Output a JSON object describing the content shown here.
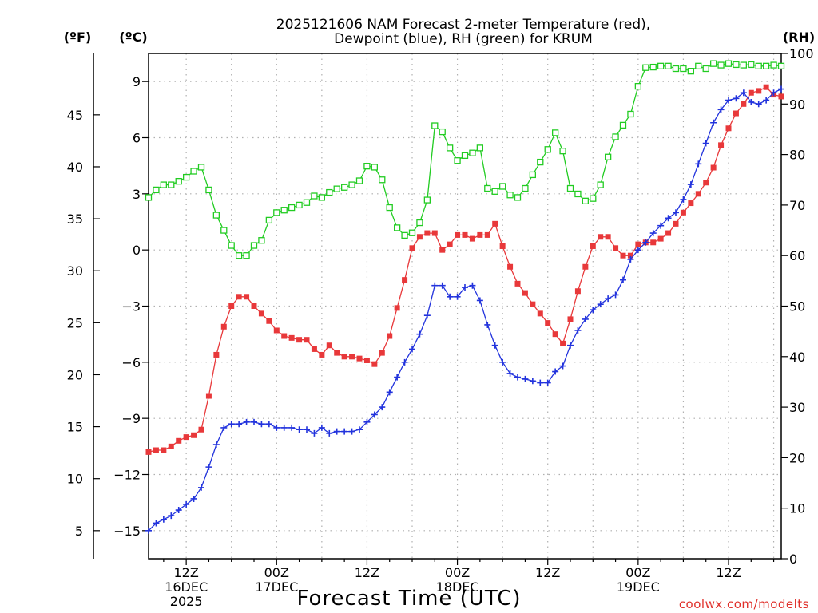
{
  "chart_data": {
    "type": "line",
    "title_line1": "2025121606 NAM Forecast 2-meter Temperature (red),",
    "title_line2": "Dewpoint (blue), RH (green) for KRUM",
    "xlabel": "Forecast Time (UTC)",
    "credit": "coolwx.com/modelts",
    "units": {
      "fahrenheit": "(ºF)",
      "celsius": "(ºC)",
      "rh": "(RH)"
    },
    "x_range_hours": [
      7,
      91
    ],
    "x_ticks": [
      {
        "hour": 12,
        "lines": [
          "12Z",
          "16DEC",
          "2025"
        ]
      },
      {
        "hour": 24,
        "lines": [
          "00Z",
          "17DEC"
        ]
      },
      {
        "hour": 36,
        "lines": [
          "12Z"
        ]
      },
      {
        "hour": 48,
        "lines": [
          "00Z",
          "18DEC"
        ]
      },
      {
        "hour": 60,
        "lines": [
          "12Z"
        ]
      },
      {
        "hour": 72,
        "lines": [
          "00Z",
          "19DEC"
        ]
      },
      {
        "hour": 84,
        "lines": [
          "12Z"
        ]
      }
    ],
    "celsius_axis": {
      "range": [
        -16.5,
        10.5
      ],
      "ticks": [
        -15,
        -12,
        -9,
        -6,
        -3,
        0,
        3,
        6,
        9
      ],
      "labels": [
        "−15",
        "−12",
        "−9",
        "−6",
        "−3",
        "0",
        "3",
        "6",
        "9"
      ]
    },
    "fahrenheit_axis": {
      "ticks": [
        5,
        10,
        15,
        20,
        25,
        30,
        35,
        40,
        45
      ],
      "labels": [
        "5",
        "10",
        "15",
        "20",
        "25",
        "30",
        "35",
        "40",
        "45"
      ]
    },
    "rh_axis": {
      "range": [
        0,
        100
      ],
      "ticks": [
        0,
        10,
        20,
        30,
        40,
        50,
        60,
        70,
        80,
        90,
        100
      ],
      "labels": [
        "0",
        "10",
        "20",
        "30",
        "40",
        "50",
        "60",
        "70",
        "80",
        "90",
        "100"
      ]
    },
    "grid": true,
    "colors": {
      "temperature": "#e8383a",
      "dewpoint": "#2233dd",
      "rh": "#22cc22",
      "grid": "#b0b0b0"
    },
    "series": [
      {
        "key": "temperature",
        "axis": "celsius",
        "marker": "filled-square",
        "x": [
          7,
          8,
          9,
          10,
          11,
          12,
          13,
          14,
          15,
          16,
          17,
          18,
          19,
          20,
          21,
          22,
          23,
          24,
          25,
          26,
          27,
          28,
          29,
          30,
          31,
          32,
          33,
          34,
          35,
          36,
          37,
          38,
          39,
          40,
          41,
          42,
          43,
          44,
          45,
          46,
          47,
          48,
          49,
          50,
          51,
          52,
          53,
          54,
          55,
          56,
          57,
          58,
          59,
          60,
          61,
          62,
          63,
          64,
          65,
          66,
          67,
          68,
          69,
          70,
          71,
          72,
          73,
          74,
          75,
          76,
          77,
          78,
          79,
          80,
          81,
          82,
          83,
          84,
          85,
          86,
          87,
          88,
          89,
          90,
          91
        ],
        "values": [
          -10.8,
          -10.7,
          -10.7,
          -10.5,
          -10.2,
          -10.0,
          -9.9,
          -9.6,
          -7.8,
          -5.6,
          -4.1,
          -3.0,
          -2.5,
          -2.5,
          -3.0,
          -3.4,
          -3.8,
          -4.3,
          -4.6,
          -4.7,
          -4.8,
          -4.8,
          -5.3,
          -5.6,
          -5.1,
          -5.5,
          -5.7,
          -5.7,
          -5.8,
          -5.9,
          -6.1,
          -5.5,
          -4.6,
          -3.1,
          -1.6,
          0.1,
          0.7,
          0.9,
          0.9,
          0.0,
          0.3,
          0.8,
          0.8,
          0.6,
          0.8,
          0.8,
          1.4,
          0.2,
          -0.9,
          -1.8,
          -2.3,
          -2.9,
          -3.4,
          -3.9,
          -4.5,
          -5.0,
          -3.7,
          -2.2,
          -0.9,
          0.2,
          0.7,
          0.7,
          0.1,
          -0.3,
          -0.3,
          0.3,
          0.4,
          0.4,
          0.6,
          0.9,
          1.4,
          2.0,
          2.5,
          3.0,
          3.6,
          4.4,
          5.6,
          6.5,
          7.3,
          7.8,
          8.4,
          8.5,
          8.7,
          8.3,
          8.2
        ]
      },
      {
        "key": "dewpoint",
        "axis": "celsius",
        "marker": "plus",
        "x": [
          7,
          8,
          9,
          10,
          11,
          12,
          13,
          14,
          15,
          16,
          17,
          18,
          19,
          20,
          21,
          22,
          23,
          24,
          25,
          26,
          27,
          28,
          29,
          30,
          31,
          32,
          33,
          34,
          35,
          36,
          37,
          38,
          39,
          40,
          41,
          42,
          43,
          44,
          45,
          46,
          47,
          48,
          49,
          50,
          51,
          52,
          53,
          54,
          55,
          56,
          57,
          58,
          59,
          60,
          61,
          62,
          63,
          64,
          65,
          66,
          67,
          68,
          69,
          70,
          71,
          72,
          73,
          74,
          75,
          76,
          77,
          78,
          79,
          80,
          81,
          82,
          83,
          84,
          85,
          86,
          87,
          88,
          89,
          90,
          91
        ],
        "values": [
          -15.0,
          -14.6,
          -14.4,
          -14.2,
          -13.9,
          -13.6,
          -13.3,
          -12.7,
          -11.6,
          -10.4,
          -9.5,
          -9.3,
          -9.3,
          -9.2,
          -9.2,
          -9.3,
          -9.3,
          -9.5,
          -9.5,
          -9.5,
          -9.6,
          -9.6,
          -9.8,
          -9.5,
          -9.8,
          -9.7,
          -9.7,
          -9.7,
          -9.6,
          -9.2,
          -8.8,
          -8.4,
          -7.6,
          -6.8,
          -6.0,
          -5.3,
          -4.5,
          -3.5,
          -1.9,
          -1.9,
          -2.5,
          -2.5,
          -2.0,
          -1.9,
          -2.7,
          -4.0,
          -5.1,
          -6.0,
          -6.6,
          -6.8,
          -6.9,
          -7.0,
          -7.1,
          -7.1,
          -6.5,
          -6.2,
          -5.1,
          -4.3,
          -3.7,
          -3.2,
          -2.9,
          -2.6,
          -2.4,
          -1.6,
          -0.5,
          0.0,
          0.4,
          0.9,
          1.3,
          1.7,
          2.0,
          2.7,
          3.5,
          4.6,
          5.7,
          6.8,
          7.5,
          8.0,
          8.1,
          8.4,
          7.9,
          7.8,
          8.0,
          8.4,
          8.6
        ]
      },
      {
        "key": "rh",
        "axis": "rh",
        "marker": "open-square",
        "x": [
          7,
          8,
          9,
          10,
          11,
          12,
          13,
          14,
          15,
          16,
          17,
          18,
          19,
          20,
          21,
          22,
          23,
          24,
          25,
          26,
          27,
          28,
          29,
          30,
          31,
          32,
          33,
          34,
          35,
          36,
          37,
          38,
          39,
          40,
          41,
          42,
          43,
          44,
          45,
          46,
          47,
          48,
          49,
          50,
          51,
          52,
          53,
          54,
          55,
          56,
          57,
          58,
          59,
          60,
          61,
          62,
          63,
          64,
          65,
          66,
          67,
          68,
          69,
          70,
          71,
          72,
          73,
          74,
          75,
          76,
          77,
          78,
          79,
          80,
          81,
          82,
          83,
          84,
          85,
          86,
          87,
          88,
          89,
          90,
          91
        ],
        "values": [
          71.5,
          73.0,
          74.0,
          74.0,
          74.7,
          75.5,
          76.7,
          77.5,
          73.0,
          68.0,
          65.0,
          62.0,
          60.0,
          60.0,
          62.0,
          63.0,
          67.0,
          68.5,
          69.0,
          69.5,
          70.0,
          70.5,
          71.8,
          71.5,
          72.5,
          73.2,
          73.5,
          74.0,
          74.8,
          77.7,
          77.5,
          75.0,
          69.5,
          65.5,
          64.0,
          64.5,
          66.5,
          71.0,
          85.7,
          84.5,
          81.3,
          78.8,
          79.8,
          80.3,
          81.3,
          73.3,
          72.7,
          73.7,
          72.0,
          71.5,
          73.3,
          76.0,
          78.5,
          81.0,
          84.3,
          80.7,
          73.3,
          72.2,
          70.8,
          71.3,
          74.0,
          79.5,
          83.5,
          85.8,
          88.0,
          93.5,
          97.2,
          97.3,
          97.5,
          97.5,
          97.0,
          97.0,
          96.5,
          97.5,
          97.0,
          98.0,
          97.7,
          98.0,
          97.8,
          97.7,
          97.8,
          97.5,
          97.5,
          97.7,
          97.5
        ]
      }
    ]
  }
}
